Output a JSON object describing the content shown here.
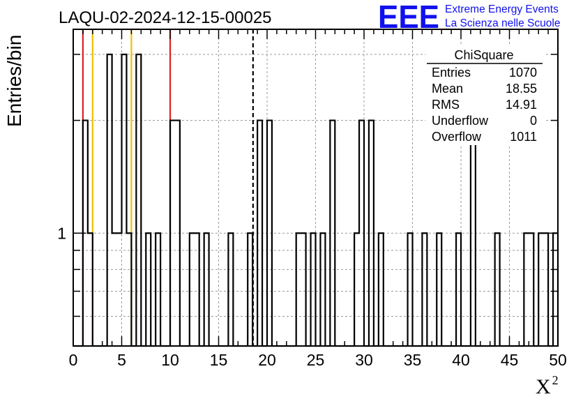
{
  "chart_data": {
    "type": "bar",
    "title": "LAQU-02-2024-12-15-00025",
    "xlabel": "X",
    "xlabel_superscript": "2",
    "ylabel": "Entries/bin",
    "xlim": [
      0,
      50
    ],
    "ylim": [
      0.5,
      3.5
    ],
    "y_scale": "log",
    "bin_width": 0.5,
    "x_ticks": [
      0,
      5,
      10,
      15,
      20,
      25,
      30,
      35,
      40,
      45,
      50
    ],
    "y_ticks": [
      1
    ],
    "grid": true,
    "bins": [
      {
        "x": 1.0,
        "value": 2
      },
      {
        "x": 1.5,
        "value": 1
      },
      {
        "x": 3.5,
        "value": 3
      },
      {
        "x": 4.0,
        "value": 1
      },
      {
        "x": 4.5,
        "value": 1
      },
      {
        "x": 5.0,
        "value": 3
      },
      {
        "x": 5.5,
        "value": 1
      },
      {
        "x": 6.5,
        "value": 3
      },
      {
        "x": 7.5,
        "value": 1
      },
      {
        "x": 8.5,
        "value": 1
      },
      {
        "x": 10.0,
        "value": 2
      },
      {
        "x": 10.5,
        "value": 2
      },
      {
        "x": 12.0,
        "value": 1
      },
      {
        "x": 12.5,
        "value": 1
      },
      {
        "x": 13.5,
        "value": 1
      },
      {
        "x": 16.0,
        "value": 1
      },
      {
        "x": 18.0,
        "value": 1
      },
      {
        "x": 19.0,
        "value": 2
      },
      {
        "x": 20.0,
        "value": 2
      },
      {
        "x": 23.0,
        "value": 1
      },
      {
        "x": 23.5,
        "value": 1
      },
      {
        "x": 24.5,
        "value": 1
      },
      {
        "x": 25.5,
        "value": 1
      },
      {
        "x": 26.5,
        "value": 2
      },
      {
        "x": 29.0,
        "value": 1
      },
      {
        "x": 29.5,
        "value": 2
      },
      {
        "x": 30.5,
        "value": 2
      },
      {
        "x": 31.5,
        "value": 1
      },
      {
        "x": 34.5,
        "value": 1
      },
      {
        "x": 36.0,
        "value": 1
      },
      {
        "x": 37.5,
        "value": 1
      },
      {
        "x": 39.5,
        "value": 1
      },
      {
        "x": 41.0,
        "value": 2
      },
      {
        "x": 43.5,
        "value": 1
      },
      {
        "x": 46.5,
        "value": 1
      },
      {
        "x": 47.0,
        "value": 1
      },
      {
        "x": 48.0,
        "value": 1
      },
      {
        "x": 48.5,
        "value": 1
      },
      {
        "x": 49.5,
        "value": 1
      }
    ],
    "vertical_lines": [
      {
        "x": 1.0,
        "color": "#dd2222",
        "style": "solid"
      },
      {
        "x": 2.0,
        "color": "#f0c000",
        "style": "solid"
      },
      {
        "x": 6.0,
        "color": "#f0c000",
        "style": "solid"
      },
      {
        "x": 10.0,
        "color": "#dd2222",
        "style": "solid"
      },
      {
        "x": 18.55,
        "color": "#000000",
        "style": "dashed"
      }
    ],
    "stats_box": {
      "title": "ChiSquare",
      "rows": [
        {
          "label": "Entries",
          "value": "1070"
        },
        {
          "label": "Mean",
          "value": "18.55"
        },
        {
          "label": "RMS",
          "value": "14.91"
        },
        {
          "label": "Underflow",
          "value": "0"
        },
        {
          "label": "Overflow",
          "value": "1011"
        }
      ],
      "placement": "top-right"
    },
    "colors": {
      "histogram": "#000000",
      "grid": "#999999",
      "logo": "#1111ee"
    }
  },
  "logo": {
    "mark": "EEE",
    "line1": "Extreme Energy Events",
    "line2": "La Scienza nelle Scuole"
  }
}
